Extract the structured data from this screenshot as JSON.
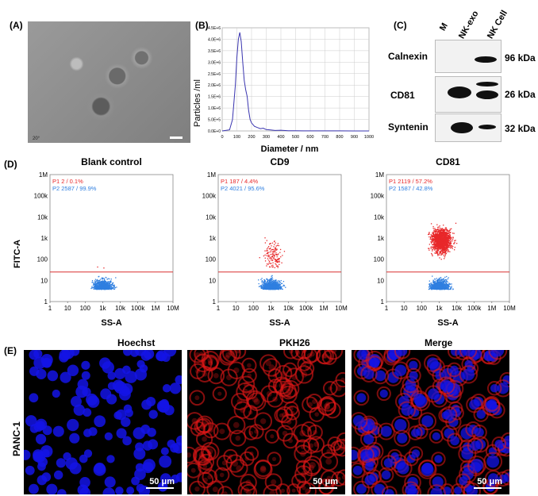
{
  "panel_labels": {
    "a": "(A)",
    "b": "(B)",
    "c": "(C)",
    "d": "(D)",
    "e": "(E)"
  },
  "tem_caption": "20°",
  "tem_scale_text": "",
  "chart_data": [
    {
      "type": "line",
      "panel": "B",
      "xlabel": "Diameter / nm",
      "ylabel": "Particles /ml",
      "xlim": [
        0,
        1000
      ],
      "ylim": [
        0,
        4500000
      ],
      "xticks": [
        "0",
        "100",
        "200",
        "300",
        "400",
        "500",
        "600",
        "700",
        "800",
        "900",
        "1000"
      ],
      "yticks": [
        "0.0E+0",
        "5.0E+5",
        "1.0E+6",
        "1.5E+6",
        "2.0E+6",
        "2.5E+6",
        "3.0E+6",
        "3.5E+6",
        "4.0E+6",
        "4.5E+6"
      ],
      "series": [
        {
          "name": "Particles",
          "x": [
            0,
            50,
            70,
            90,
            100,
            110,
            120,
            130,
            140,
            150,
            160,
            170,
            180,
            190,
            200,
            220,
            240,
            260,
            280,
            300,
            330,
            360,
            400,
            450,
            500,
            600,
            700,
            800,
            900,
            1000
          ],
          "values": [
            0,
            50000,
            500000,
            2000000,
            3200000,
            4000000,
            4300000,
            3900000,
            3000000,
            2200000,
            1800000,
            1500000,
            900000,
            500000,
            350000,
            200000,
            150000,
            100000,
            120000,
            60000,
            40000,
            20000,
            30000,
            10000,
            8000,
            5000,
            3000,
            2000,
            1000,
            0
          ]
        }
      ]
    },
    {
      "type": "scatter",
      "panel": "D",
      "plots": [
        {
          "title": "Blank control",
          "p1": "P1  2 / 0.1%",
          "p2": "P2  2587 / 99.9%"
        },
        {
          "title": "CD9",
          "p1": "P1  187 / 4.4%",
          "p2": "P2  4021 / 95.6%"
        },
        {
          "title": "CD81",
          "p1": "P1  2119 / 57.2%",
          "p2": "P2  1587 / 42.8%"
        }
      ],
      "xlabel": "SS-A",
      "ylabel": "FITC-A",
      "xticks": [
        "1",
        "10",
        "100",
        "1k",
        "10k",
        "100k",
        "1M",
        "10M"
      ],
      "yticks": [
        "1",
        "10",
        "100",
        "1k",
        "10k",
        "100k",
        "1M"
      ],
      "gate_y": 25,
      "colors": {
        "p1": "#e8282a",
        "p2": "#2f7fe0",
        "gate": "#d93030"
      }
    }
  ],
  "western": {
    "lanes": [
      "M",
      "NK-exo",
      "NK Cell"
    ],
    "rows": [
      {
        "protein": "Calnexin",
        "kda": "96 kDa"
      },
      {
        "protein": "CD81",
        "kda": "26 kDa"
      },
      {
        "protein": "Syntenin",
        "kda": "32 kDa"
      }
    ]
  },
  "micro": {
    "row_label": "PANC-1",
    "titles": [
      "Hoechst",
      "PKH26",
      "Merge"
    ],
    "scale": "50 μm",
    "colors": {
      "blue": "#1414e6",
      "red": "#e01818"
    }
  }
}
